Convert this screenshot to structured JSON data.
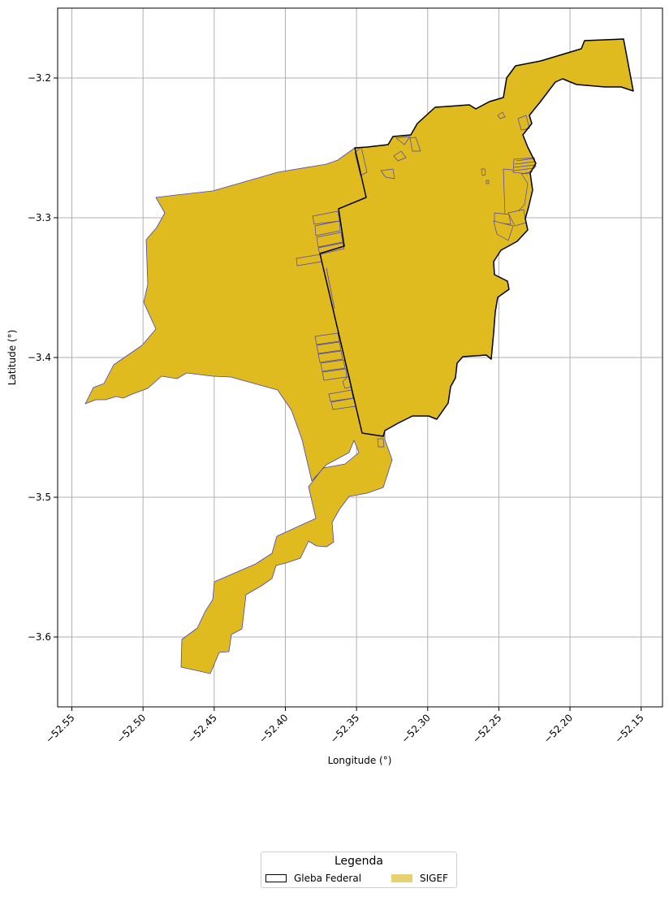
{
  "chart_data": {
    "type": "map",
    "title": "",
    "xlabel": "Longitude (°)",
    "ylabel": "Latitude (°)",
    "xlim": [
      -52.56,
      -52.135
    ],
    "ylim": [
      -3.65,
      -3.15
    ],
    "xticks": [
      -52.55,
      -52.5,
      -52.45,
      -52.4,
      -52.35,
      -52.3,
      -52.25,
      -52.2,
      -52.15
    ],
    "xtick_labels": [
      "−52.55",
      "−52.50",
      "−52.45",
      "−52.40",
      "−52.35",
      "−52.30",
      "−52.25",
      "−52.20",
      "−52.15"
    ],
    "yticks": [
      -3.2,
      -3.3,
      -3.4,
      -3.5,
      -3.6
    ],
    "ytick_labels": [
      "−3.2",
      "−3.3",
      "−3.4",
      "−3.5",
      "−3.6"
    ],
    "grid": true,
    "legend": {
      "title": "Legenda",
      "placement": "bottom-center",
      "items": [
        {
          "label": "Gleba Federal",
          "style": "outline",
          "color": "#000000"
        },
        {
          "label": "SIGEF",
          "style": "fill",
          "color": "#e8d170"
        }
      ]
    },
    "colors": {
      "sigef_fill": "#dfbb1f",
      "sigef_edge": "#4a43b8",
      "gleba_edge": "#000000",
      "grid": "#b0b0b0"
    }
  }
}
